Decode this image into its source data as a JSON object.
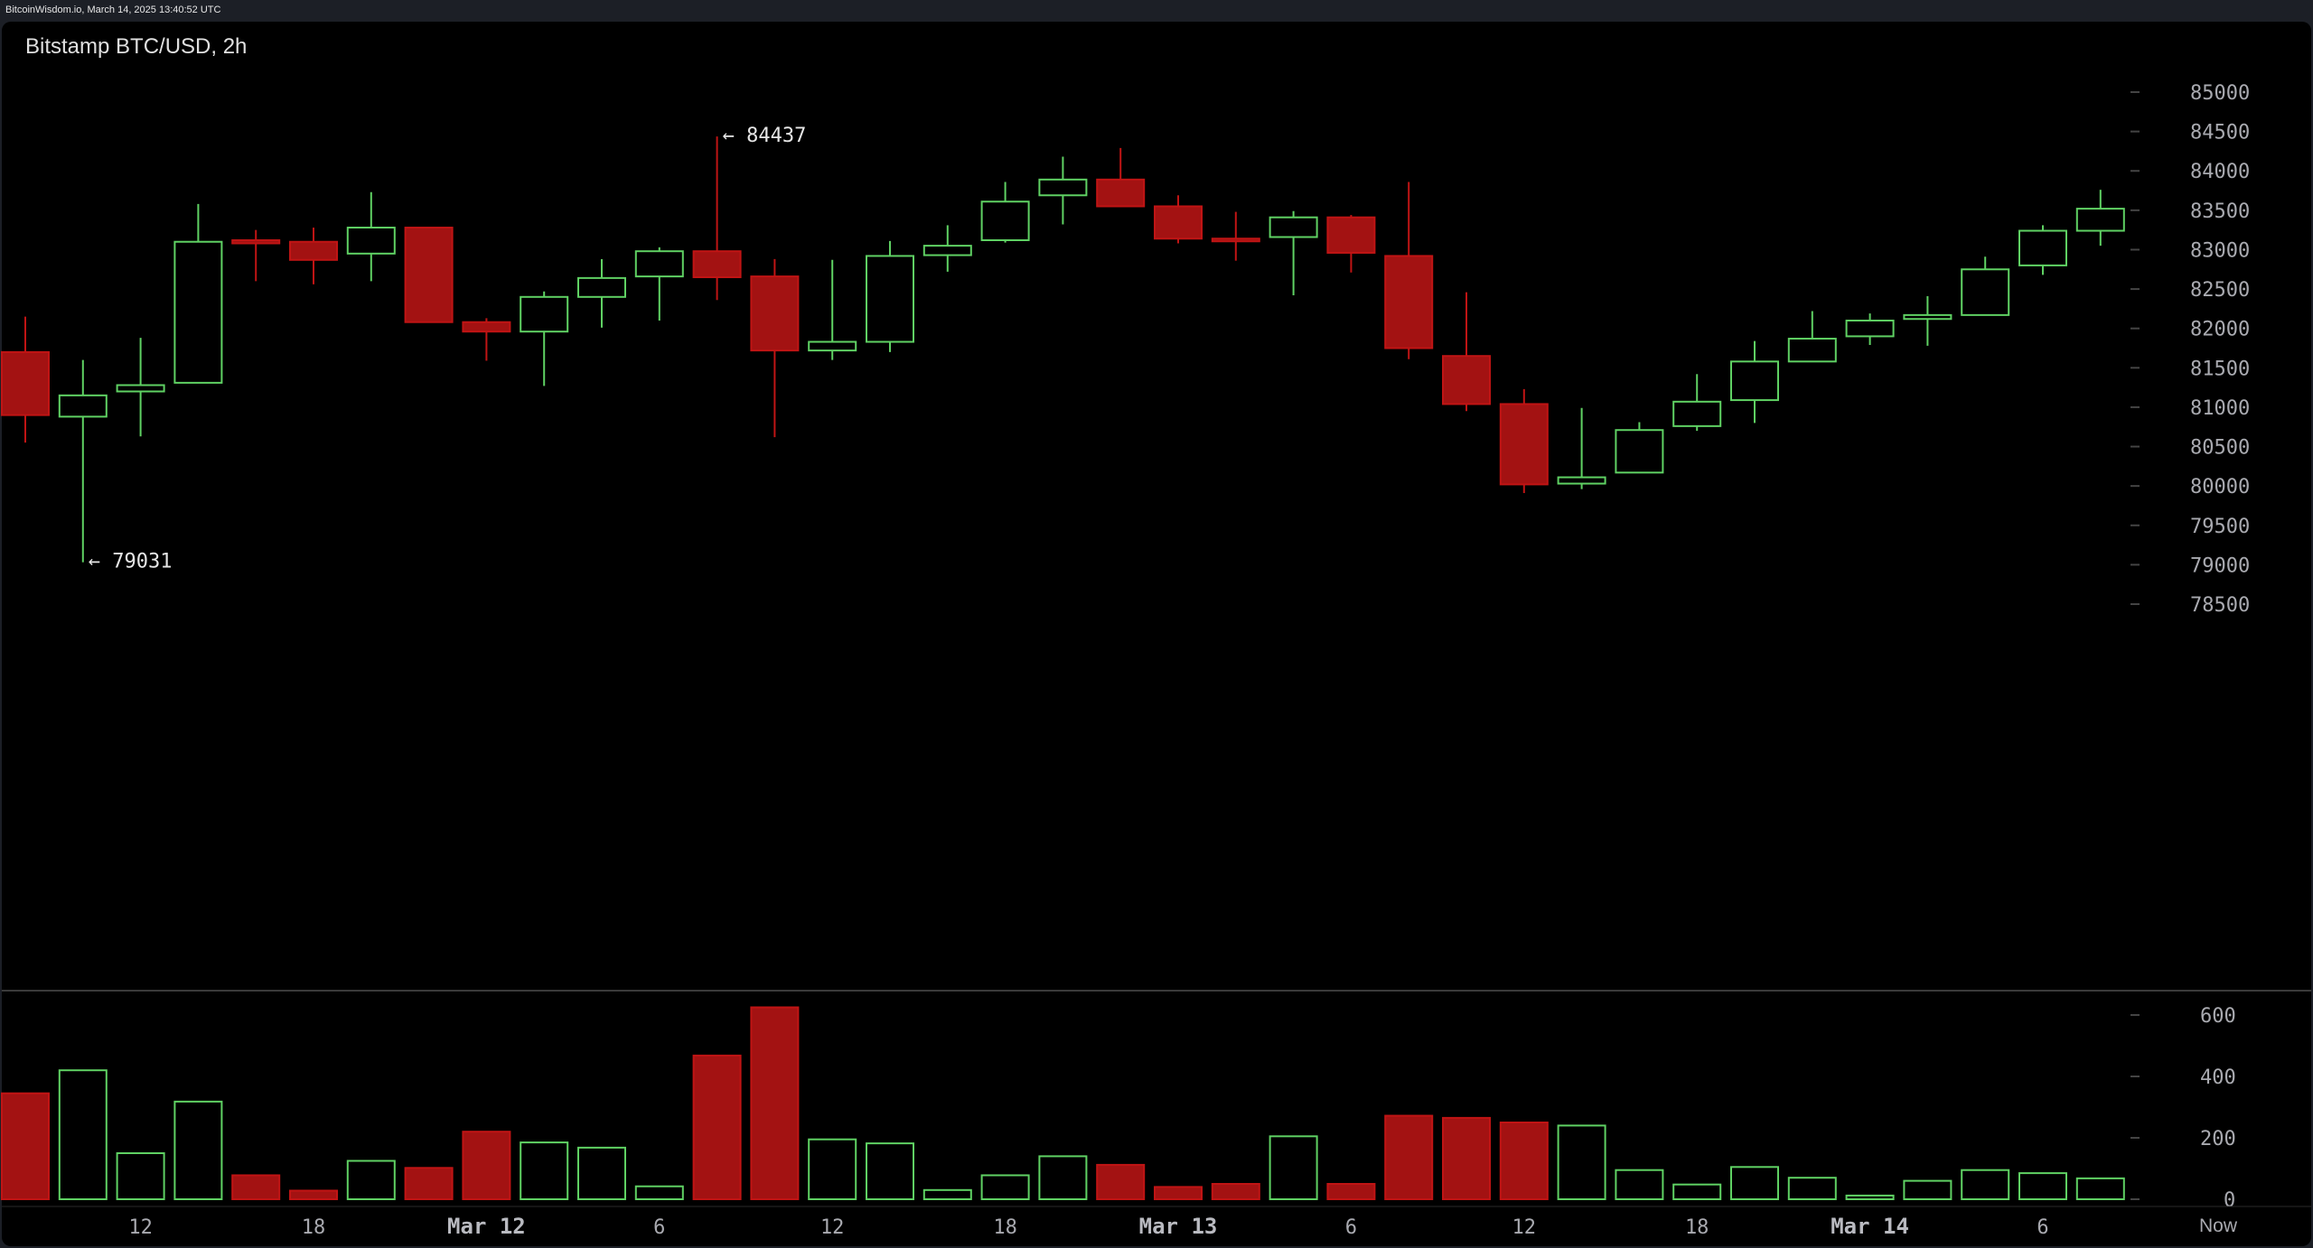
{
  "header": {
    "source_text": "BitcoinWisdom.io, March 14, 2025 13:40:52 UTC"
  },
  "chart_data": {
    "type": "candlestick",
    "title": "Bitstamp BTC/USD, 2h",
    "price_axis": {
      "ylim": [
        78000,
        85500
      ],
      "ticks": [
        85000,
        84500,
        84000,
        83500,
        83000,
        82500,
        82000,
        81500,
        81000,
        80500,
        80000,
        79500,
        79000,
        78500
      ]
    },
    "volume_axis": {
      "ylim": [
        0,
        640
      ],
      "ticks": [
        600,
        400,
        200,
        0
      ]
    },
    "x_labels": [
      {
        "label": "12",
        "index": 2,
        "bold": false
      },
      {
        "label": "18",
        "index": 5,
        "bold": false
      },
      {
        "label": "Mar 12",
        "index": 8,
        "bold": true
      },
      {
        "label": "6",
        "index": 11,
        "bold": false
      },
      {
        "label": "12",
        "index": 14,
        "bold": false
      },
      {
        "label": "18",
        "index": 17,
        "bold": false
      },
      {
        "label": "Mar 13",
        "index": 20,
        "bold": true
      },
      {
        "label": "6",
        "index": 23,
        "bold": false
      },
      {
        "label": "12",
        "index": 26,
        "bold": false
      },
      {
        "label": "18",
        "index": 29,
        "bold": false
      },
      {
        "label": "Mar 14",
        "index": 32,
        "bold": true
      },
      {
        "label": "6",
        "index": 35,
        "bold": false
      }
    ],
    "now_label": "Now",
    "annotations": [
      {
        "text": "← 84437",
        "index": 12,
        "price": 84437
      },
      {
        "text": "← 79031",
        "index": 1,
        "price": 79031
      }
    ],
    "colors": {
      "up": "#5fd163",
      "down": "#c01414",
      "down_fill": "#a31212",
      "grid": "#3a3a3a",
      "background": "#000000"
    },
    "candles": [
      {
        "o": 81700,
        "h": 82150,
        "l": 80550,
        "c": 80900,
        "v": 345
      },
      {
        "o": 80880,
        "h": 81600,
        "l": 79031,
        "c": 81150,
        "v": 420
      },
      {
        "o": 81200,
        "h": 81880,
        "l": 80630,
        "c": 81280,
        "v": 150
      },
      {
        "o": 81310,
        "h": 83580,
        "l": 81310,
        "c": 83100,
        "v": 318
      },
      {
        "o": 83120,
        "h": 83250,
        "l": 82600,
        "c": 83080,
        "v": 78
      },
      {
        "o": 83100,
        "h": 83280,
        "l": 82560,
        "c": 82870,
        "v": 28
      },
      {
        "o": 82950,
        "h": 83730,
        "l": 82600,
        "c": 83280,
        "v": 125
      },
      {
        "o": 83280,
        "h": 83280,
        "l": 82080,
        "c": 82080,
        "v": 102
      },
      {
        "o": 82080,
        "h": 82130,
        "l": 81590,
        "c": 81960,
        "v": 220
      },
      {
        "o": 81960,
        "h": 82470,
        "l": 81270,
        "c": 82400,
        "v": 185
      },
      {
        "o": 82400,
        "h": 82880,
        "l": 82010,
        "c": 82640,
        "v": 168
      },
      {
        "o": 82660,
        "h": 83030,
        "l": 82100,
        "c": 82980,
        "v": 42
      },
      {
        "o": 82980,
        "h": 84437,
        "l": 82360,
        "c": 82650,
        "v": 468
      },
      {
        "o": 82660,
        "h": 82880,
        "l": 80620,
        "c": 81720,
        "v": 625
      },
      {
        "o": 81720,
        "h": 82870,
        "l": 81600,
        "c": 81830,
        "v": 195
      },
      {
        "o": 81830,
        "h": 83110,
        "l": 81700,
        "c": 82920,
        "v": 182
      },
      {
        "o": 82930,
        "h": 83310,
        "l": 82720,
        "c": 83050,
        "v": 30
      },
      {
        "o": 83120,
        "h": 83860,
        "l": 83090,
        "c": 83610,
        "v": 78
      },
      {
        "o": 83690,
        "h": 84180,
        "l": 83320,
        "c": 83890,
        "v": 140
      },
      {
        "o": 83890,
        "h": 84290,
        "l": 83540,
        "c": 83550,
        "v": 112
      },
      {
        "o": 83550,
        "h": 83690,
        "l": 83080,
        "c": 83140,
        "v": 40
      },
      {
        "o": 83140,
        "h": 83480,
        "l": 82860,
        "c": 83130,
        "v": 50
      },
      {
        "o": 83160,
        "h": 83490,
        "l": 82420,
        "c": 83410,
        "v": 205
      },
      {
        "o": 83410,
        "h": 83440,
        "l": 82710,
        "c": 82960,
        "v": 50
      },
      {
        "o": 82920,
        "h": 83860,
        "l": 81610,
        "c": 81750,
        "v": 272
      },
      {
        "o": 81650,
        "h": 82460,
        "l": 80950,
        "c": 81040,
        "v": 265
      },
      {
        "o": 81040,
        "h": 81230,
        "l": 79910,
        "c": 80020,
        "v": 250
      },
      {
        "o": 80030,
        "h": 80990,
        "l": 79960,
        "c": 80110,
        "v": 240
      },
      {
        "o": 80170,
        "h": 80810,
        "l": 80170,
        "c": 80710,
        "v": 95
      },
      {
        "o": 80760,
        "h": 81420,
        "l": 80700,
        "c": 81070,
        "v": 48
      },
      {
        "o": 81090,
        "h": 81840,
        "l": 80800,
        "c": 81580,
        "v": 105
      },
      {
        "o": 81580,
        "h": 82220,
        "l": 81580,
        "c": 81870,
        "v": 70
      },
      {
        "o": 81900,
        "h": 82190,
        "l": 81790,
        "c": 82100,
        "v": 12
      },
      {
        "o": 82120,
        "h": 82410,
        "l": 81780,
        "c": 82170,
        "v": 60
      },
      {
        "o": 82170,
        "h": 82910,
        "l": 82170,
        "c": 82750,
        "v": 95
      },
      {
        "o": 82800,
        "h": 83310,
        "l": 82680,
        "c": 83240,
        "v": 85
      },
      {
        "o": 83240,
        "h": 83760,
        "l": 83050,
        "c": 83520,
        "v": 68
      }
    ]
  }
}
